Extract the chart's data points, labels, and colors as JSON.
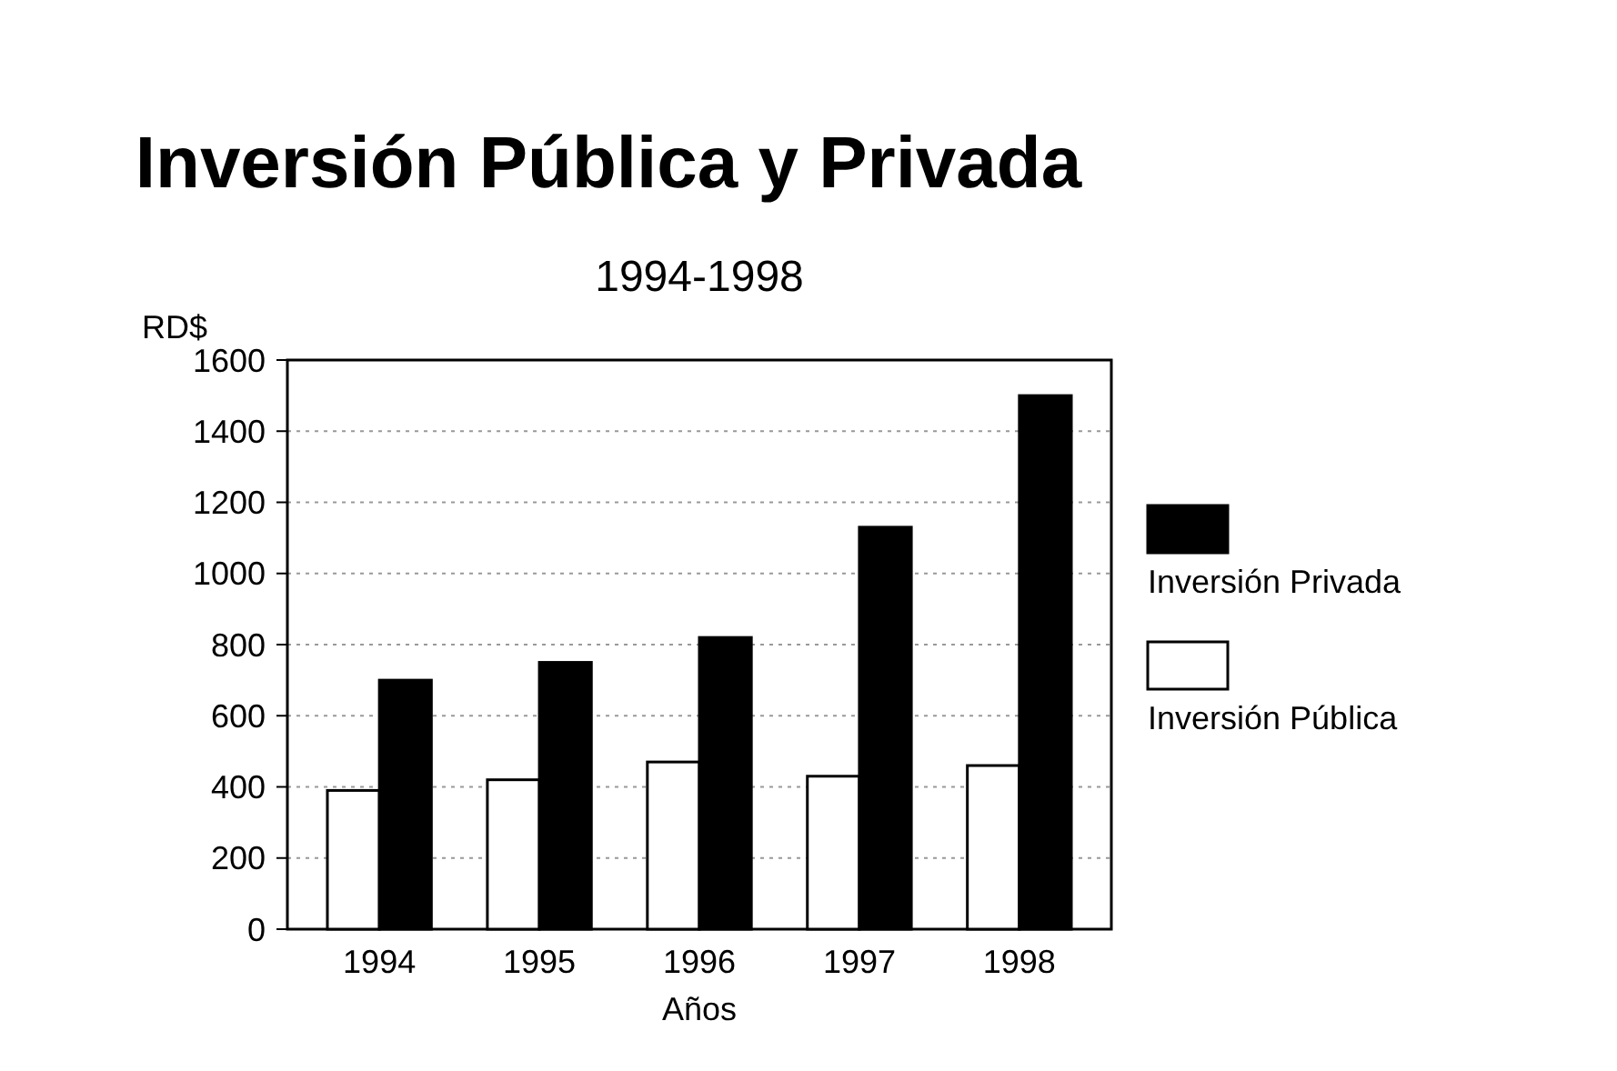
{
  "chart_data": {
    "type": "bar",
    "title": "Inversión Pública y Privada",
    "subtitle": "1994-1998",
    "ylabel": "RD$",
    "xlabel": "Años",
    "categories": [
      "1994",
      "1995",
      "1996",
      "1997",
      "1998"
    ],
    "series": [
      {
        "name": "Inversión Pública",
        "color": "#ffffff",
        "values": [
          390,
          420,
          470,
          430,
          460
        ]
      },
      {
        "name": "Inversión Privada",
        "color": "#000000",
        "values": [
          700,
          750,
          820,
          1130,
          1500
        ]
      }
    ],
    "ylim": [
      0,
      1600
    ],
    "yticks": [
      0,
      200,
      400,
      600,
      800,
      1000,
      1200,
      1400,
      1600
    ],
    "grid": "y",
    "legend": "right"
  }
}
